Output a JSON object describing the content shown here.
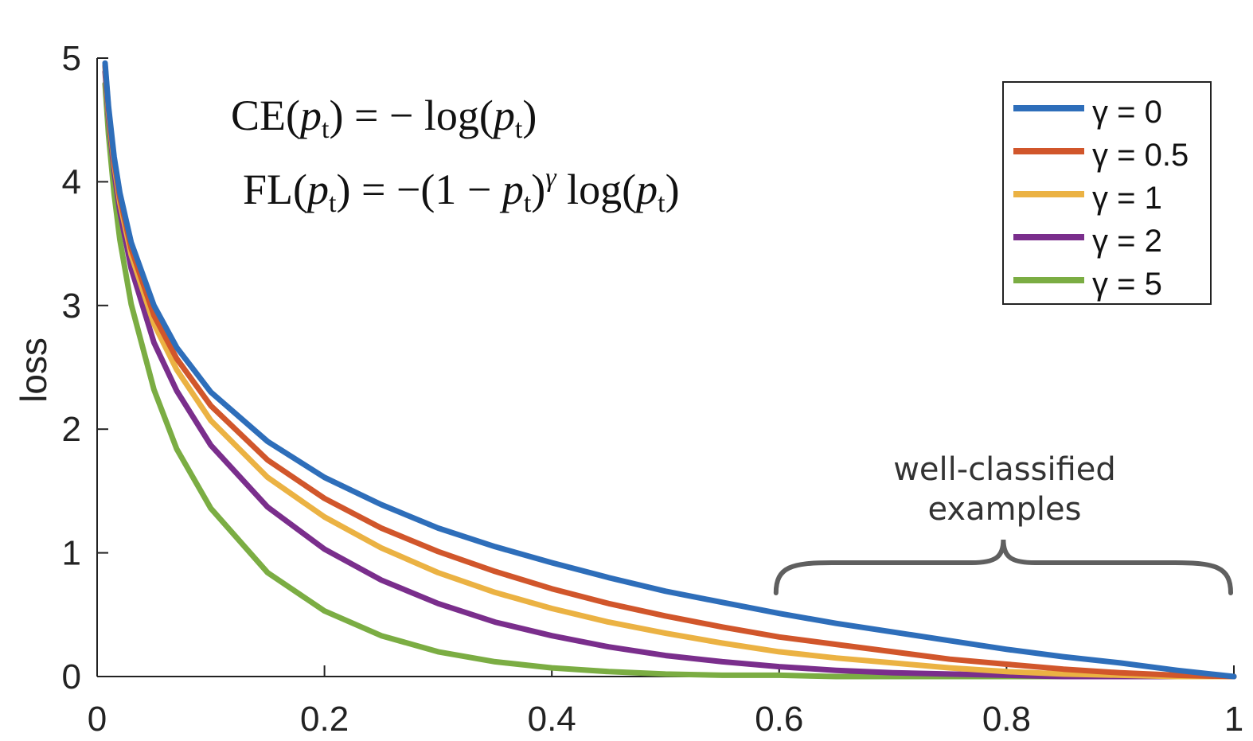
{
  "chart_data": {
    "type": "line",
    "title": "",
    "xlabel": "",
    "ylabel": "loss",
    "xlim": [
      0,
      1
    ],
    "ylim": [
      0,
      5
    ],
    "x_ticks": [
      "0",
      "0.2",
      "0.4",
      "0.6",
      "0.8",
      "1"
    ],
    "y_ticks": [
      "0",
      "1",
      "2",
      "3",
      "4",
      "5"
    ],
    "grid": false,
    "legend_position": "top-right",
    "x": [
      0.007,
      0.01,
      0.015,
      0.02,
      0.03,
      0.05,
      0.07,
      0.1,
      0.15,
      0.2,
      0.25,
      0.3,
      0.35,
      0.4,
      0.45,
      0.5,
      0.55,
      0.6,
      0.65,
      0.7,
      0.75,
      0.8,
      0.85,
      0.9,
      0.95,
      1.0
    ],
    "series": [
      {
        "name": "γ = 0",
        "color": "#2E6EBA",
        "values": [
          4.96,
          4.61,
          4.2,
          3.91,
          3.51,
          3.0,
          2.66,
          2.3,
          1.9,
          1.61,
          1.39,
          1.2,
          1.05,
          0.92,
          0.8,
          0.69,
          0.6,
          0.51,
          0.43,
          0.36,
          0.29,
          0.22,
          0.16,
          0.11,
          0.05,
          0.0
        ]
      },
      {
        "name": "γ = 0.5",
        "color": "#D1562B",
        "values": [
          4.94,
          4.59,
          4.17,
          3.87,
          3.46,
          2.92,
          2.57,
          2.19,
          1.75,
          1.44,
          1.2,
          1.01,
          0.85,
          0.71,
          0.59,
          0.49,
          0.4,
          0.32,
          0.26,
          0.2,
          0.14,
          0.1,
          0.06,
          0.03,
          0.01,
          0.0
        ]
      },
      {
        "name": "γ = 1",
        "color": "#EBB243",
        "values": [
          4.93,
          4.56,
          4.14,
          3.83,
          3.41,
          2.85,
          2.48,
          2.07,
          1.61,
          1.29,
          1.04,
          0.84,
          0.68,
          0.55,
          0.44,
          0.35,
          0.27,
          0.2,
          0.15,
          0.11,
          0.07,
          0.04,
          0.02,
          0.01,
          0.0,
          0.0
        ]
      },
      {
        "name": "γ = 2",
        "color": "#7A2E8C",
        "values": [
          4.89,
          4.52,
          4.08,
          3.76,
          3.3,
          2.7,
          2.31,
          1.87,
          1.37,
          1.03,
          0.78,
          0.59,
          0.44,
          0.33,
          0.24,
          0.17,
          0.12,
          0.08,
          0.05,
          0.03,
          0.02,
          0.01,
          0.0,
          0.0,
          0.0,
          0.0
        ]
      },
      {
        "name": "γ = 5",
        "color": "#7BAD43",
        "values": [
          4.79,
          4.38,
          3.9,
          3.53,
          3.01,
          2.32,
          1.84,
          1.36,
          0.84,
          0.53,
          0.33,
          0.2,
          0.12,
          0.07,
          0.04,
          0.02,
          0.01,
          0.01,
          0.0,
          0.0,
          0.0,
          0.0,
          0.0,
          0.0,
          0.0,
          0.0
        ]
      }
    ],
    "equations": {
      "ce": {
        "lhs": "CE",
        "arg": "p",
        "sub": "t",
        "equals": "=",
        "rhs_prefix": "− log",
        "rhs_arg": "p",
        "rhs_sub": "t"
      },
      "fl": {
        "lhs": "FL",
        "arg": "p",
        "sub": "t",
        "equals": "=",
        "rhs_prefix": "−(1 − ",
        "rhs_p": "p",
        "rhs_sub": "t",
        "exponent": "γ",
        "rhs_log": "log",
        "rhs_arg": "p",
        "rhs_sub2": "t"
      }
    },
    "annotation": {
      "line1": "well-classified",
      "line2": "examples",
      "x_range": [
        0.6,
        1.0
      ]
    }
  }
}
